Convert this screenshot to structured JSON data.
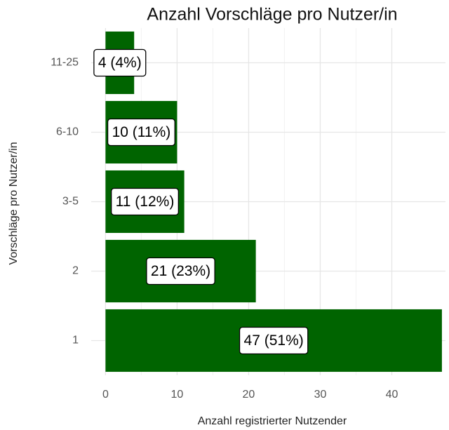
{
  "chart_data": {
    "type": "barh",
    "title": "Anzahl Vorschläge pro Nutzer/in",
    "x_label": "Anzahl registrierter Nutzender",
    "y_label": "Vorschläge pro Nutzer/in",
    "categories": [
      "1",
      "2",
      "3-5",
      "6-10",
      "11-25"
    ],
    "values": [
      47,
      21,
      11,
      10,
      4
    ],
    "value_labels": [
      "47 (51%)",
      "21 (23%)",
      "11 (12%)",
      "10 (11%)",
      "4 (4%)"
    ],
    "color": "#006400",
    "xlim": [
      -2,
      47.5
    ],
    "xticks": [
      0,
      10,
      20,
      30,
      40
    ],
    "grid": true
  }
}
